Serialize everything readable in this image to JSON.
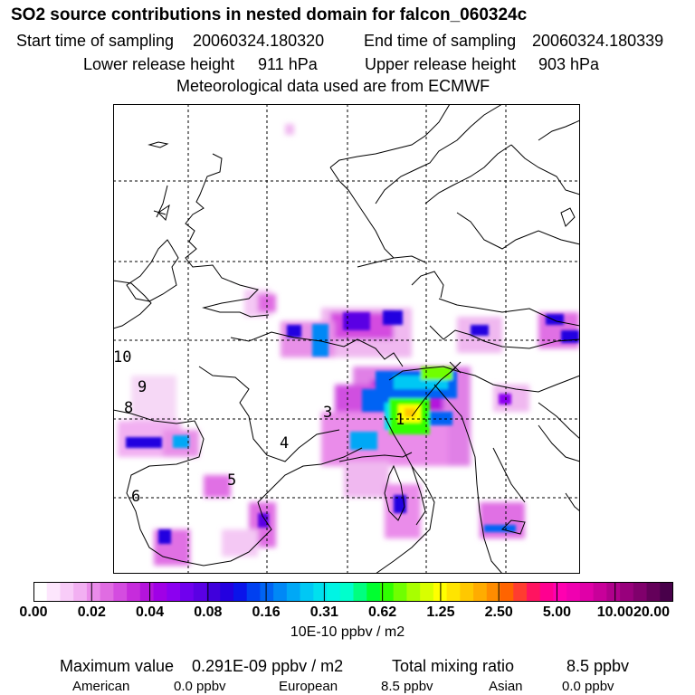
{
  "header": {
    "title": "SO2 source contributions in nested domain for falcon_060324c",
    "start_label": "Start time of sampling",
    "start_value": "20060324.180320",
    "end_label": "End time of sampling",
    "end_value": "20060324.180339",
    "lower_label": "Lower release height",
    "lower_value": "911 hPa",
    "upper_label": "Upper release height",
    "upper_value": "903 hPa",
    "met_text": "Meteorological data used are from ECMWF"
  },
  "map": {
    "track_labels": [
      "1",
      "3",
      "4",
      "5",
      "6",
      "8",
      "9",
      "10"
    ]
  },
  "colorbar": {
    "ticks": [
      "0.00",
      "0.02",
      "0.04",
      "0.08",
      "0.16",
      "0.31",
      "0.62",
      "1.25",
      "2.50",
      "5.00",
      "10.00",
      "20.00"
    ],
    "colors": [
      "#ffffff",
      "#fde6fd",
      "#f8ccf8",
      "#f2b0f2",
      "#ea8cea",
      "#e06ce2",
      "#d44ce0",
      "#c62cdc",
      "#b414dc",
      "#a000e6",
      "#8c00f0",
      "#7000ee",
      "#5a00e4",
      "#4000dc",
      "#2400e0",
      "#0a14ea",
      "#0040f0",
      "#0064f4",
      "#0088f6",
      "#00a8f6",
      "#00c8f4",
      "#00e0ee",
      "#00f4e4",
      "#00ffcc",
      "#00ff80",
      "#00ff30",
      "#30ff00",
      "#70ff00",
      "#a8ff00",
      "#d8ff00",
      "#ffff00",
      "#ffe400",
      "#ffc800",
      "#ffac00",
      "#ff8c00",
      "#ff6400",
      "#ff3c30",
      "#ff1460",
      "#ff0090",
      "#ff00b0",
      "#f000b0",
      "#e000a8",
      "#c8009a",
      "#b0008c",
      "#98007c",
      "#80006c",
      "#64005a",
      "#48004a"
    ],
    "units": "10E-10 ppbv / m2"
  },
  "footer": {
    "max_label": "Maximum value",
    "max_value": "0.291E-09 ppbv / m2",
    "total_label": "Total mixing ratio",
    "total_value": "8.5 ppbv",
    "american_label": "American",
    "american_value": "0.0 ppbv",
    "european_label": "European",
    "european_value": "8.5 ppbv",
    "asian_label": "Asian",
    "asian_value": "0.0 ppbv"
  }
}
